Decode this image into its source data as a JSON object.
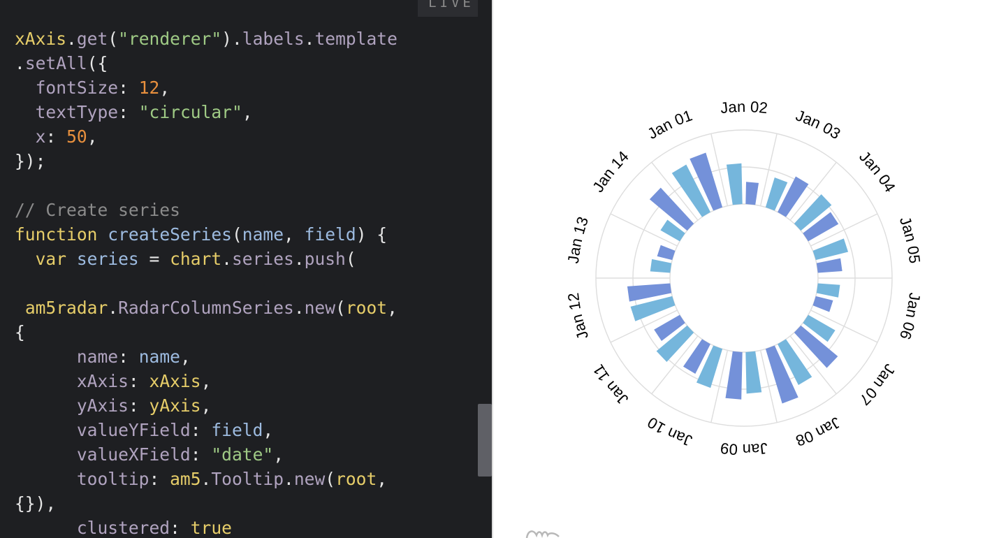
{
  "live_badge": "LIVE",
  "code_lines": [
    [
      {
        "t": "xAxis",
        "c": "t-var"
      },
      {
        "t": ".",
        "c": "t-p"
      },
      {
        "t": "get",
        "c": "t-prop"
      },
      {
        "t": "(",
        "c": "t-p"
      },
      {
        "t": "\"renderer\"",
        "c": "t-str"
      },
      {
        "t": ").",
        "c": "t-p"
      },
      {
        "t": "labels",
        "c": "t-prop"
      },
      {
        "t": ".",
        "c": "t-p"
      },
      {
        "t": "template",
        "c": "t-prop"
      }
    ],
    [
      {
        "t": ".",
        "c": "t-p"
      },
      {
        "t": "setAll",
        "c": "t-prop"
      },
      {
        "t": "({",
        "c": "t-p"
      }
    ],
    [
      {
        "t": "  ",
        "c": "t-p"
      },
      {
        "t": "fontSize",
        "c": "t-prop"
      },
      {
        "t": ": ",
        "c": "t-p"
      },
      {
        "t": "12",
        "c": "t-num"
      },
      {
        "t": ",",
        "c": "t-p"
      }
    ],
    [
      {
        "t": "  ",
        "c": "t-p"
      },
      {
        "t": "textType",
        "c": "t-prop"
      },
      {
        "t": ": ",
        "c": "t-p"
      },
      {
        "t": "\"circular\"",
        "c": "t-str"
      },
      {
        "t": ",",
        "c": "t-p"
      }
    ],
    [
      {
        "t": "  ",
        "c": "t-p"
      },
      {
        "t": "x",
        "c": "t-prop"
      },
      {
        "t": ": ",
        "c": "t-p"
      },
      {
        "t": "50",
        "c": "t-num"
      },
      {
        "t": ",",
        "c": "t-p"
      }
    ],
    [
      {
        "t": "});",
        "c": "t-p"
      }
    ],
    [],
    [
      {
        "t": "// Create series",
        "c": "t-com"
      }
    ],
    [
      {
        "t": "function",
        "c": "t-kw"
      },
      {
        "t": " ",
        "c": "t-p"
      },
      {
        "t": "createSeries",
        "c": "t-fn"
      },
      {
        "t": "(",
        "c": "t-p"
      },
      {
        "t": "name",
        "c": "t-fn"
      },
      {
        "t": ", ",
        "c": "t-p"
      },
      {
        "t": "field",
        "c": "t-fn"
      },
      {
        "t": ") {",
        "c": "t-p"
      }
    ],
    [
      {
        "t": "  ",
        "c": "t-p"
      },
      {
        "t": "var",
        "c": "t-kw"
      },
      {
        "t": " ",
        "c": "t-p"
      },
      {
        "t": "series",
        "c": "t-fn"
      },
      {
        "t": " = ",
        "c": "t-p"
      },
      {
        "t": "chart",
        "c": "t-var"
      },
      {
        "t": ".",
        "c": "t-p"
      },
      {
        "t": "series",
        "c": "t-prop"
      },
      {
        "t": ".",
        "c": "t-p"
      },
      {
        "t": "push",
        "c": "t-prop"
      },
      {
        "t": "(",
        "c": "t-p"
      }
    ],
    [],
    [
      {
        "t": " ",
        "c": "t-p"
      },
      {
        "t": "am5radar",
        "c": "t-var"
      },
      {
        "t": ".",
        "c": "t-p"
      },
      {
        "t": "RadarColumnSeries",
        "c": "t-prop"
      },
      {
        "t": ".",
        "c": "t-p"
      },
      {
        "t": "new",
        "c": "t-prop"
      },
      {
        "t": "(",
        "c": "t-p"
      },
      {
        "t": "root",
        "c": "t-var"
      },
      {
        "t": ",",
        "c": "t-p"
      }
    ],
    [
      {
        "t": "{",
        "c": "t-p"
      }
    ],
    [
      {
        "t": "      ",
        "c": "t-p"
      },
      {
        "t": "name",
        "c": "t-prop"
      },
      {
        "t": ": ",
        "c": "t-p"
      },
      {
        "t": "name",
        "c": "t-fn"
      },
      {
        "t": ",",
        "c": "t-p"
      }
    ],
    [
      {
        "t": "      ",
        "c": "t-p"
      },
      {
        "t": "xAxis",
        "c": "t-prop"
      },
      {
        "t": ": ",
        "c": "t-p"
      },
      {
        "t": "xAxis",
        "c": "t-var"
      },
      {
        "t": ",",
        "c": "t-p"
      }
    ],
    [
      {
        "t": "      ",
        "c": "t-p"
      },
      {
        "t": "yAxis",
        "c": "t-prop"
      },
      {
        "t": ": ",
        "c": "t-p"
      },
      {
        "t": "yAxis",
        "c": "t-var"
      },
      {
        "t": ",",
        "c": "t-p"
      }
    ],
    [
      {
        "t": "      ",
        "c": "t-p"
      },
      {
        "t": "valueYField",
        "c": "t-prop"
      },
      {
        "t": ": ",
        "c": "t-p"
      },
      {
        "t": "field",
        "c": "t-fn"
      },
      {
        "t": ",",
        "c": "t-p"
      }
    ],
    [
      {
        "t": "      ",
        "c": "t-p"
      },
      {
        "t": "valueXField",
        "c": "t-prop"
      },
      {
        "t": ": ",
        "c": "t-p"
      },
      {
        "t": "\"date\"",
        "c": "t-str"
      },
      {
        "t": ",",
        "c": "t-p"
      }
    ],
    [
      {
        "t": "      ",
        "c": "t-p"
      },
      {
        "t": "tooltip",
        "c": "t-prop"
      },
      {
        "t": ": ",
        "c": "t-p"
      },
      {
        "t": "am5",
        "c": "t-var"
      },
      {
        "t": ".",
        "c": "t-p"
      },
      {
        "t": "Tooltip",
        "c": "t-prop"
      },
      {
        "t": ".",
        "c": "t-p"
      },
      {
        "t": "new",
        "c": "t-prop"
      },
      {
        "t": "(",
        "c": "t-p"
      },
      {
        "t": "root",
        "c": "t-var"
      },
      {
        "t": ",",
        "c": "t-p"
      }
    ],
    [
      {
        "t": "{}),",
        "c": "t-p"
      }
    ],
    [
      {
        "t": "      ",
        "c": "t-p"
      },
      {
        "t": "clustered",
        "c": "t-prop"
      },
      {
        "t": ": ",
        "c": "t-p"
      },
      {
        "t": "true",
        "c": "t-true"
      }
    ]
  ],
  "chart_data": {
    "type": "bar",
    "polar": true,
    "categories": [
      "Jan 01",
      "Jan 02",
      "Jan 03",
      "Jan 04",
      "Jan 05",
      "Jan 06",
      "Jan 07",
      "Jan 08",
      "Jan 09",
      "Jan 10",
      "Jan 11",
      "Jan 12",
      "Jan 13",
      "Jan 14"
    ],
    "series": [
      {
        "values": [
          0.72,
          0.55,
          0.42,
          0.54,
          0.45,
          0.3,
          0.42,
          0.62,
          0.56,
          0.55,
          0.54,
          0.58,
          0.27,
          0.3
        ],
        "color": "#75b6dc"
      },
      {
        "values": [
          0.77,
          0.3,
          0.54,
          0.47,
          0.33,
          0.24,
          0.65,
          0.77,
          0.64,
          0.45,
          0.4,
          0.58,
          0.21,
          0.66
        ],
        "color": "#7491d9"
      }
    ],
    "grid": true,
    "legend": "none"
  }
}
